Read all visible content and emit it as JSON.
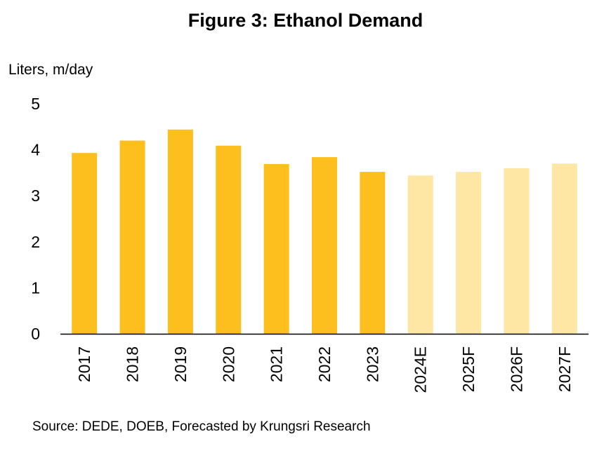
{
  "header": {
    "title": "Figure 3: Ethanol Demand"
  },
  "footer": {
    "source": "Source: DEDE, DOEB, Forecasted by Krungsri Research"
  },
  "colors": {
    "actual": "#FDBF1E",
    "forecast": "#FEE6A4",
    "axis": "#000000"
  },
  "chart_data": {
    "type": "bar",
    "title": "Figure 3: Ethanol Demand",
    "ylabel": "Liters, m/day",
    "xlabel": "",
    "ylim": [
      0,
      5
    ],
    "yticks": [
      0,
      1,
      2,
      3,
      4,
      5
    ],
    "grid": false,
    "categories": [
      "2017",
      "2018",
      "2019",
      "2020",
      "2021",
      "2022",
      "2023",
      "2024E",
      "2025F",
      "2026F",
      "2027F"
    ],
    "values": [
      3.93,
      4.2,
      4.44,
      4.09,
      3.69,
      3.84,
      3.52,
      3.44,
      3.52,
      3.6,
      3.7
    ],
    "forecast": [
      false,
      false,
      false,
      false,
      false,
      false,
      false,
      true,
      true,
      true,
      true
    ]
  }
}
